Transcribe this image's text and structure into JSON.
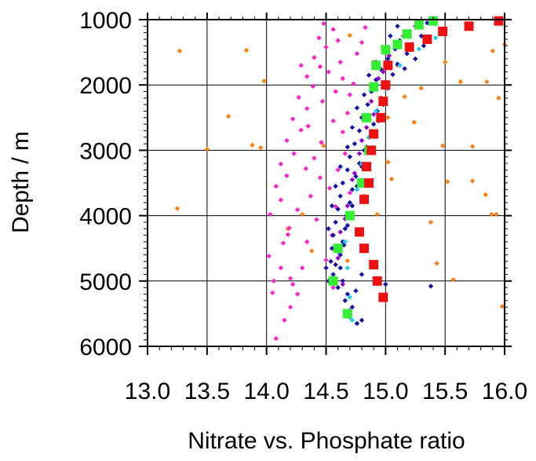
{
  "chart_data": {
    "type": "scatter",
    "title": "",
    "xlabel": "Nitrate vs. Phosphate ratio",
    "ylabel": "Depth / m",
    "xlim": [
      13.0,
      16.0
    ],
    "ylim": [
      1000,
      6000
    ],
    "y_inverted": true,
    "grid": true,
    "xticks": [
      "13.0",
      "13.5",
      "14.0",
      "14.5",
      "15.0",
      "15.5",
      "16.0"
    ],
    "yticks": [
      "1000",
      "2000",
      "3000",
      "4000",
      "5000",
      "6000"
    ],
    "series": [
      {
        "color": "#ff7f0e",
        "marker": "diamond",
        "points": [
          [
            13.27,
            1480
          ],
          [
            13.83,
            1470
          ],
          [
            13.98,
            1940
          ],
          [
            13.68,
            2480
          ],
          [
            13.5,
            2980
          ],
          [
            13.88,
            2920
          ],
          [
            13.25,
            3890
          ],
          [
            13.95,
            2960
          ],
          [
            14.48,
            2930
          ],
          [
            14.3,
            3980
          ],
          [
            14.18,
            4200
          ],
          [
            14.38,
            4540
          ],
          [
            14.7,
            1240
          ],
          [
            14.9,
            1650
          ],
          [
            15.1,
            1700
          ],
          [
            15.5,
            1650
          ],
          [
            15.3,
            2050
          ],
          [
            15.63,
            1950
          ],
          [
            15.85,
            1950
          ],
          [
            15.95,
            2200
          ],
          [
            15.9,
            1480
          ],
          [
            16.0,
            1380
          ],
          [
            15.48,
            2930
          ],
          [
            15.73,
            2940
          ],
          [
            15.52,
            3480
          ],
          [
            15.73,
            3470
          ],
          [
            15.84,
            3680
          ],
          [
            15.89,
            3980
          ],
          [
            15.93,
            3980
          ],
          [
            15.38,
            4100
          ],
          [
            15.43,
            4730
          ],
          [
            15.57,
            4980
          ],
          [
            15.98,
            5390
          ],
          [
            14.93,
            3980
          ],
          [
            15.02,
            3180
          ],
          [
            15.05,
            3440
          ],
          [
            15.02,
            2500
          ],
          [
            15.16,
            2180
          ],
          [
            15.24,
            2570
          ],
          [
            14.82,
            3700
          ],
          [
            14.68,
            4690
          ]
        ]
      },
      {
        "color": "#ff22cc",
        "marker": "diamond",
        "points": [
          [
            14.08,
            5880
          ],
          [
            14.15,
            5600
          ],
          [
            14.05,
            5180
          ],
          [
            14.2,
            4960
          ],
          [
            14.02,
            4620
          ],
          [
            14.14,
            4420
          ],
          [
            14.19,
            4190
          ],
          [
            14.03,
            3980
          ],
          [
            14.12,
            3760
          ],
          [
            14.08,
            3550
          ],
          [
            14.17,
            3390
          ],
          [
            14.12,
            3210
          ],
          [
            14.23,
            3050
          ],
          [
            14.17,
            2850
          ],
          [
            14.29,
            2690
          ],
          [
            14.22,
            2520
          ],
          [
            14.34,
            2360
          ],
          [
            14.27,
            2190
          ],
          [
            14.39,
            2020
          ],
          [
            14.34,
            1870
          ],
          [
            14.45,
            1720
          ],
          [
            14.4,
            1580
          ],
          [
            14.5,
            1420
          ],
          [
            14.44,
            1280
          ],
          [
            14.56,
            1150
          ],
          [
            14.48,
            1060
          ],
          [
            14.6,
            1320
          ],
          [
            14.52,
            1800
          ],
          [
            14.58,
            2100
          ],
          [
            14.62,
            1650
          ],
          [
            14.46,
            2880
          ],
          [
            14.4,
            3120
          ],
          [
            14.45,
            3420
          ],
          [
            14.37,
            3700
          ],
          [
            14.42,
            4060
          ],
          [
            14.34,
            4400
          ],
          [
            14.3,
            4800
          ],
          [
            14.26,
            5200
          ],
          [
            14.2,
            5400
          ],
          [
            14.55,
            4300
          ],
          [
            14.5,
            4680
          ],
          [
            14.58,
            3860
          ],
          [
            14.53,
            3580
          ],
          [
            14.6,
            3300
          ],
          [
            14.64,
            2720
          ],
          [
            14.68,
            2430
          ],
          [
            14.7,
            2150
          ],
          [
            14.73,
            1980
          ],
          [
            14.76,
            1520
          ],
          [
            14.8,
            1350
          ],
          [
            14.83,
            1120
          ],
          [
            14.64,
            1900
          ],
          [
            14.33,
            3280
          ],
          [
            14.26,
            3910
          ],
          [
            14.18,
            4290
          ],
          [
            14.12,
            4800
          ],
          [
            14.22,
            5050
          ],
          [
            14.06,
            5000
          ],
          [
            14.29,
            1700
          ],
          [
            14.35,
            2630
          ],
          [
            14.47,
            2250
          ],
          [
            14.56,
            2550
          ],
          [
            14.66,
            3050
          ],
          [
            14.7,
            3650
          ],
          [
            14.6,
            4500
          ],
          [
            14.56,
            5100
          ]
        ]
      },
      {
        "color": "#1010aa",
        "marker": "diamond",
        "points": [
          [
            15.35,
            1050
          ],
          [
            15.28,
            1110
          ],
          [
            15.2,
            1180
          ],
          [
            15.3,
            1250
          ],
          [
            15.12,
            1320
          ],
          [
            15.22,
            1380
          ],
          [
            15.08,
            1450
          ],
          [
            15.18,
            1520
          ],
          [
            15.02,
            1600
          ],
          [
            15.1,
            1680
          ],
          [
            14.96,
            1760
          ],
          [
            15.06,
            1840
          ],
          [
            14.92,
            1920
          ],
          [
            15.0,
            2000
          ],
          [
            14.88,
            2100
          ],
          [
            14.96,
            2200
          ],
          [
            14.85,
            2300
          ],
          [
            14.93,
            2400
          ],
          [
            14.8,
            2500
          ],
          [
            14.9,
            2600
          ],
          [
            14.78,
            2700
          ],
          [
            14.86,
            2800
          ],
          [
            14.74,
            2900
          ],
          [
            14.82,
            3000
          ],
          [
            14.7,
            3100
          ],
          [
            14.78,
            3200
          ],
          [
            14.68,
            3300
          ],
          [
            14.75,
            3400
          ],
          [
            14.64,
            3500
          ],
          [
            14.72,
            3600
          ],
          [
            14.62,
            3700
          ],
          [
            14.7,
            3800
          ],
          [
            14.6,
            3900
          ],
          [
            14.67,
            4000
          ],
          [
            14.58,
            4100
          ],
          [
            14.66,
            4200
          ],
          [
            14.56,
            4300
          ],
          [
            14.64,
            4400
          ],
          [
            14.55,
            4500
          ],
          [
            14.62,
            4600
          ],
          [
            14.54,
            4700
          ],
          [
            14.62,
            4800
          ],
          [
            14.56,
            4900
          ],
          [
            14.64,
            5000
          ],
          [
            14.6,
            5100
          ],
          [
            14.68,
            5200
          ],
          [
            14.66,
            5300
          ],
          [
            14.72,
            5400
          ],
          [
            14.7,
            5550
          ],
          [
            14.8,
            5600
          ],
          [
            14.76,
            5650
          ],
          [
            15.38,
            5080
          ],
          [
            15.0,
            5050
          ],
          [
            14.8,
            4900
          ],
          [
            14.75,
            5150
          ],
          [
            15.25,
            1600
          ],
          [
            15.32,
            1400
          ],
          [
            15.16,
            1750
          ],
          [
            15.02,
            2050
          ],
          [
            14.98,
            2300
          ],
          [
            14.94,
            2550
          ],
          [
            14.88,
            2750
          ],
          [
            14.84,
            2950
          ],
          [
            14.8,
            3250
          ],
          [
            14.76,
            3550
          ],
          [
            14.72,
            3850
          ],
          [
            14.68,
            4150
          ],
          [
            14.65,
            4450
          ],
          [
            14.58,
            4750
          ],
          [
            14.52,
            5000
          ],
          [
            14.5,
            4800
          ],
          [
            14.52,
            4200
          ],
          [
            14.55,
            3850
          ],
          [
            14.58,
            3550
          ],
          [
            14.62,
            3250
          ],
          [
            14.68,
            2950
          ],
          [
            14.72,
            2650
          ],
          [
            14.76,
            2350
          ],
          [
            14.82,
            2150
          ],
          [
            14.86,
            1850
          ],
          [
            14.92,
            1650
          ],
          [
            14.98,
            1450
          ],
          [
            15.04,
            1250
          ],
          [
            15.1,
            1100
          ]
        ]
      },
      {
        "color": "#9900cc",
        "marker": "diamond",
        "points": [
          [
            15.25,
            1100
          ],
          [
            15.12,
            1350
          ],
          [
            15.03,
            1550
          ],
          [
            14.94,
            1900
          ],
          [
            14.88,
            2250
          ],
          [
            14.84,
            2650
          ],
          [
            14.78,
            3050
          ],
          [
            14.72,
            3450
          ],
          [
            14.68,
            3850
          ],
          [
            14.62,
            4250
          ],
          [
            14.6,
            4650
          ],
          [
            14.64,
            5050
          ],
          [
            14.7,
            5450
          ],
          [
            15.15,
            1250
          ],
          [
            14.98,
            1800
          ],
          [
            14.9,
            2450
          ],
          [
            14.8,
            2850
          ],
          [
            14.74,
            3350
          ],
          [
            14.66,
            4050
          ],
          [
            14.6,
            4550
          ]
        ]
      },
      {
        "color": "#22ccee",
        "marker": "diamond",
        "points": [
          [
            15.42,
            1280
          ],
          [
            15.28,
            1450
          ],
          [
            15.12,
            1700
          ],
          [
            15.0,
            2050
          ],
          [
            14.92,
            2400
          ],
          [
            14.86,
            2800
          ],
          [
            14.8,
            3200
          ],
          [
            14.76,
            3600
          ],
          [
            14.7,
            4000
          ],
          [
            14.66,
            4400
          ],
          [
            14.68,
            4800
          ],
          [
            14.7,
            5250
          ],
          [
            14.72,
            5600
          ]
        ]
      },
      {
        "color": "#33ee33",
        "marker": "square",
        "points": [
          [
            15.4,
            1020
          ],
          [
            15.28,
            1080
          ],
          [
            15.18,
            1220
          ],
          [
            15.1,
            1380
          ],
          [
            15.0,
            1460
          ],
          [
            14.92,
            1700
          ],
          [
            14.9,
            2030
          ],
          [
            14.84,
            2500
          ],
          [
            14.86,
            3000
          ],
          [
            14.8,
            3500
          ],
          [
            14.7,
            4000
          ],
          [
            14.6,
            4500
          ],
          [
            14.56,
            5000
          ],
          [
            14.68,
            5500
          ]
        ]
      },
      {
        "color": "#ee1111",
        "marker": "square",
        "points": [
          [
            15.95,
            1020
          ],
          [
            15.7,
            1100
          ],
          [
            15.48,
            1180
          ],
          [
            15.35,
            1300
          ],
          [
            15.2,
            1420
          ],
          [
            15.02,
            1700
          ],
          [
            15.0,
            2000
          ],
          [
            14.98,
            2250
          ],
          [
            14.96,
            2500
          ],
          [
            14.9,
            2750
          ],
          [
            14.88,
            3000
          ],
          [
            14.84,
            3250
          ],
          [
            14.86,
            3500
          ],
          [
            14.82,
            3750
          ],
          [
            14.78,
            4250
          ],
          [
            14.82,
            4500
          ],
          [
            14.9,
            4750
          ],
          [
            14.93,
            5000
          ],
          [
            14.98,
            5250
          ]
        ]
      }
    ]
  }
}
